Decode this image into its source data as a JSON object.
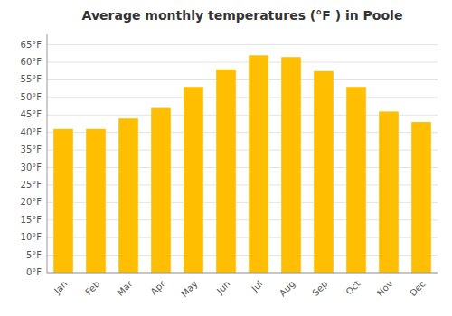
{
  "chart_data": {
    "type": "bar",
    "title": "Average monthly temperatures (°F ) in Poole",
    "categories": [
      "Jan",
      "Feb",
      "Mar",
      "Apr",
      "May",
      "Jun",
      "Jul",
      "Aug",
      "Sep",
      "Oct",
      "Nov",
      "Dec"
    ],
    "values": [
      41,
      41,
      44,
      47,
      53,
      58,
      62,
      61.5,
      57.5,
      53,
      46,
      43
    ],
    "color": "#FFBF00",
    "ylim": [
      0,
      68
    ],
    "yticks": [
      {
        "value": 0,
        "label": "0°F"
      },
      {
        "value": 5,
        "label": "5°F"
      },
      {
        "value": 10,
        "label": "10°F"
      },
      {
        "value": 15,
        "label": "15°F"
      },
      {
        "value": 20,
        "label": "20°F"
      },
      {
        "value": 25,
        "label": "25°F"
      },
      {
        "value": 30,
        "label": "30°F"
      },
      {
        "value": 35,
        "label": "35°F"
      },
      {
        "value": 40,
        "label": "40°F"
      },
      {
        "value": 45,
        "label": "45°F"
      },
      {
        "value": 50,
        "label": "50°F"
      },
      {
        "value": 55,
        "label": "55°F"
      },
      {
        "value": 60,
        "label": "60°F"
      },
      {
        "value": 65,
        "label": "65°F"
      }
    ],
    "grid": true
  }
}
